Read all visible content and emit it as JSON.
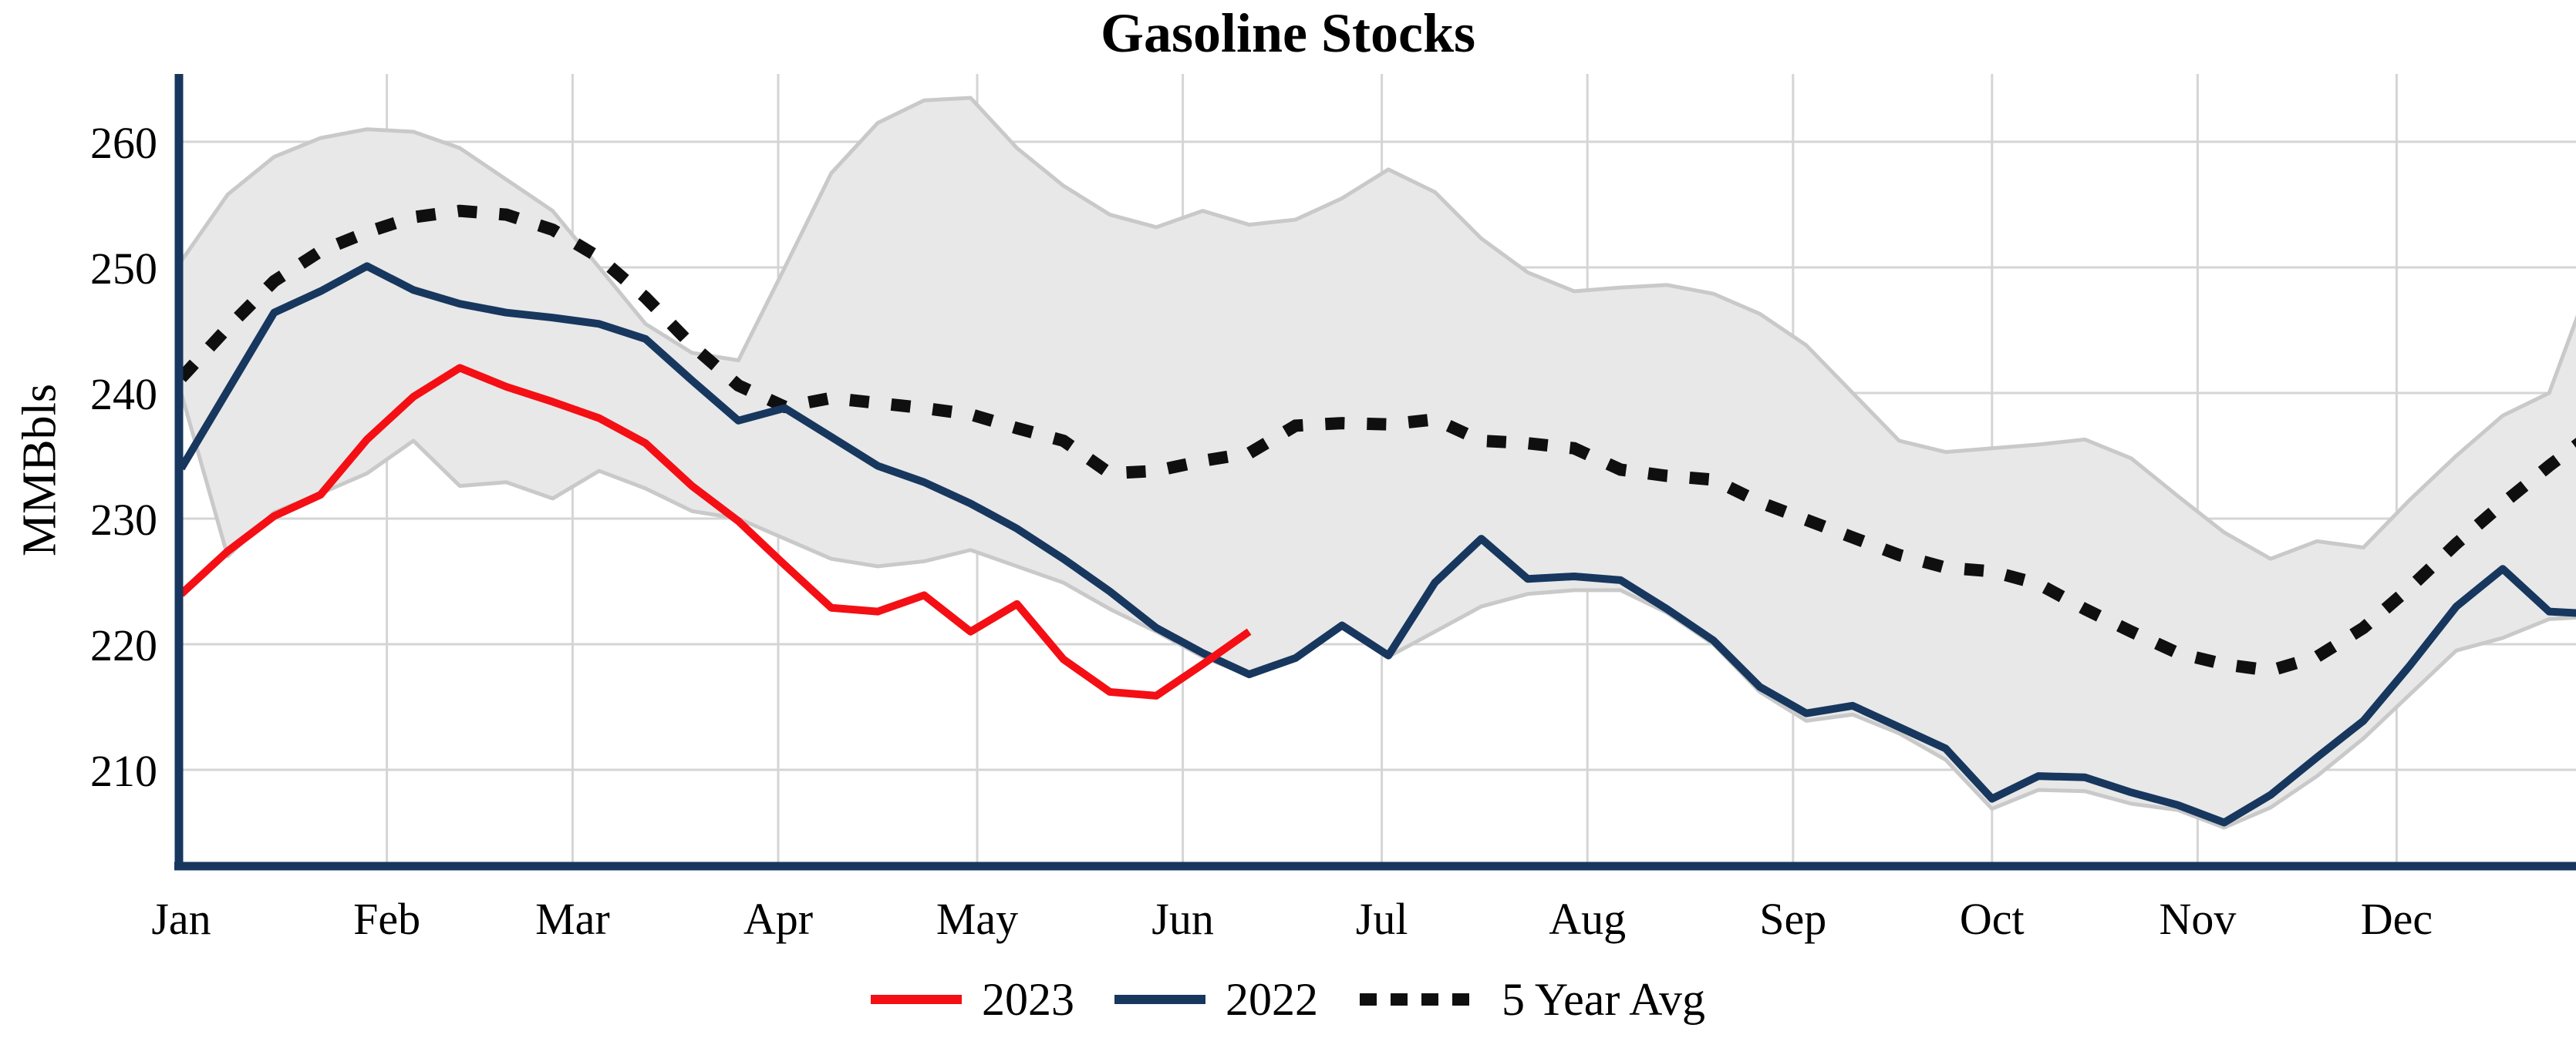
{
  "chart_data": {
    "type": "line",
    "title": "Gasoline Stocks",
    "ylabel": "MMBbls",
    "yticks": [
      210,
      220,
      230,
      240,
      250,
      260
    ],
    "ylim": [
      202,
      266
    ],
    "grid": true,
    "x_axis": {
      "tick_labels": [
        "Jan",
        "Feb",
        "Mar",
        "Apr",
        "May",
        "Jun",
        "Jul",
        "Aug",
        "Sep",
        "Oct",
        "Nov",
        "Dec"
      ],
      "tick_days": [
        0,
        31,
        59,
        90,
        120,
        151,
        181,
        212,
        243,
        273,
        304,
        334
      ],
      "points_interval_days": 7
    },
    "legend": [
      {
        "label": "2023",
        "style": "solid",
        "color": "#f40f14"
      },
      {
        "label": "2022",
        "style": "solid",
        "color": "#17375e"
      },
      {
        "label": "5 Year Avg",
        "style": "dotted",
        "color": "#0f0f0f"
      }
    ],
    "colors": {
      "red_2023": "#f40f14",
      "navy_2022": "#17375e",
      "five_year_avg": "#0f0f0f",
      "band_fill": "#e8e8e8",
      "band_edge": "#c9c9c9",
      "gridline": "#d5d5d5",
      "axis": "#17375e",
      "text": "#000000"
    },
    "band": {
      "name": "5 Year Range",
      "upper": [
        250.5,
        255.8,
        258.8,
        260.3,
        261.0,
        260.8,
        259.5,
        257.0,
        254.5,
        250.0,
        245.5,
        243.2,
        242.6,
        250.0,
        257.5,
        261.5,
        263.3,
        263.5,
        259.5,
        256.5,
        254.2,
        253.2,
        254.5,
        253.4,
        253.8,
        255.5,
        257.8,
        256.0,
        252.3,
        249.6,
        248.1,
        248.4,
        248.6,
        247.9,
        246.3,
        243.8,
        240.0,
        236.2,
        235.3,
        235.6,
        235.9,
        236.3,
        234.8,
        231.8,
        228.9,
        226.8,
        228.2,
        227.7,
        231.5,
        235.0,
        238.2,
        240.0,
        250.0
      ],
      "lower": [
        240.0,
        227.0,
        230.5,
        232.0,
        233.6,
        236.2,
        232.6,
        232.9,
        231.6,
        233.8,
        232.4,
        230.6,
        230.0,
        228.4,
        226.8,
        226.2,
        226.6,
        227.5,
        226.2,
        224.9,
        222.8,
        221.0,
        219.0,
        217.5,
        218.8,
        221.3,
        219.0,
        221.0,
        223.0,
        224.0,
        224.3,
        224.3,
        222.5,
        220.0,
        216.2,
        213.9,
        214.4,
        212.9,
        210.8,
        206.9,
        208.4,
        208.3,
        207.3,
        206.8,
        205.4,
        207.0,
        209.5,
        212.5,
        216.0,
        219.5,
        220.5,
        222.0,
        222.2
      ]
    },
    "series": [
      {
        "name": "five_year_avg",
        "values": [
          241.2,
          245.2,
          248.9,
          251.3,
          252.8,
          254.0,
          254.5,
          254.2,
          253.0,
          250.8,
          247.6,
          243.8,
          240.6,
          238.9,
          239.6,
          239.2,
          238.8,
          238.3,
          237.2,
          236.2,
          233.6,
          233.8,
          234.6,
          235.2,
          237.4,
          237.6,
          237.5,
          237.9,
          236.2,
          236.0,
          235.6,
          233.9,
          233.4,
          233.1,
          231.3,
          229.9,
          228.5,
          227.1,
          226.1,
          225.8,
          224.8,
          222.8,
          221.0,
          219.3,
          218.4,
          217.9,
          219.0,
          221.3,
          224.5,
          228.0,
          231.2,
          234.2,
          237.0
        ]
      },
      {
        "name": "2022",
        "values": [
          234.0,
          240.2,
          246.4,
          248.1,
          250.1,
          248.2,
          247.1,
          246.4,
          246.0,
          245.5,
          244.3,
          241.0,
          237.8,
          238.8,
          236.5,
          234.2,
          232.9,
          231.2,
          229.2,
          226.8,
          224.2,
          221.3,
          219.3,
          217.6,
          218.9,
          221.5,
          219.1,
          224.9,
          228.4,
          225.2,
          225.4,
          225.1,
          222.8,
          220.3,
          216.6,
          214.5,
          215.1,
          213.4,
          211.7,
          207.7,
          209.5,
          209.4,
          208.2,
          207.2,
          205.8,
          208.0,
          211.0,
          213.9,
          218.3,
          223.0,
          226.0,
          222.6,
          222.4
        ]
      },
      {
        "name": "2023",
        "values": [
          224.0,
          227.4,
          230.2,
          231.9,
          236.3,
          239.7,
          242.0,
          240.5,
          239.3,
          238.0,
          236.0,
          232.6,
          229.8,
          226.3,
          222.9,
          222.6,
          223.9,
          221.0,
          223.2,
          218.8,
          216.2,
          215.9,
          218.4,
          221.0
        ]
      }
    ]
  }
}
